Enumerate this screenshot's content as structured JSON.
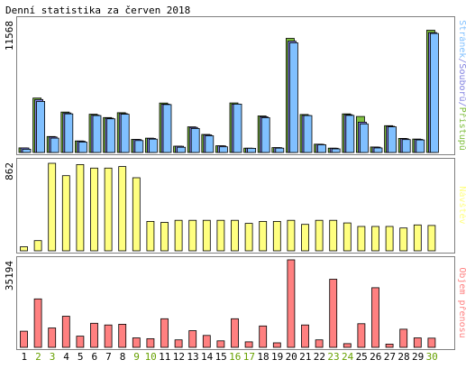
{
  "title": "Denní statistika za červen 2018",
  "colors": {
    "background": "#ffffff",
    "panel_border": "#808080",
    "hits": "#80c040",
    "files": "#8080e0",
    "pages": "#80c0ff",
    "visits": "#ffff80",
    "kbytes": "#ff8080",
    "day_weekday": "#000000",
    "day_weekend": "#66a000"
  },
  "chart_data": [
    {
      "type": "bar",
      "title": "",
      "ymax_label": "11568",
      "ylim": [
        0,
        11568
      ],
      "side_label_parts": [
        {
          "text": "Stránek",
          "color_key": "pages"
        },
        {
          "text": "/",
          "color_key": "files"
        },
        {
          "text": "Souborů",
          "color_key": "files"
        },
        {
          "text": "/",
          "color_key": "files"
        },
        {
          "text": "Přístupů",
          "color_key": "hits"
        }
      ],
      "series": [
        {
          "name": "Přístupů",
          "color_key": "hits",
          "values": [
            420,
            4980,
            1460,
            3700,
            1060,
            3500,
            3200,
            3640,
            1200,
            1310,
            4530,
            580,
            2350,
            1650,
            610,
            4540,
            400,
            3350,
            450,
            10450,
            3480,
            760,
            400,
            3540,
            3300,
            500,
            2450,
            1290,
            1230,
            11200
          ]
        },
        {
          "name": "Souborů",
          "color_key": "files",
          "values": [
            410,
            4850,
            1420,
            3620,
            1030,
            3420,
            3140,
            3560,
            1180,
            1290,
            4430,
            570,
            2300,
            1610,
            600,
            4440,
            390,
            3270,
            440,
            10200,
            3400,
            740,
            390,
            3460,
            2780,
            490,
            2400,
            1260,
            1200,
            10980
          ]
        },
        {
          "name": "Stránek",
          "color_key": "pages",
          "values": [
            300,
            4680,
            1310,
            3540,
            960,
            3380,
            3080,
            3500,
            1090,
            1220,
            4390,
            480,
            2200,
            1530,
            520,
            4430,
            380,
            3190,
            400,
            10050,
            3380,
            700,
            330,
            3400,
            2620,
            410,
            2350,
            1180,
            1150,
            10900
          ]
        }
      ]
    },
    {
      "type": "bar",
      "title": "",
      "ymax_label": "862",
      "ylim": [
        0,
        862
      ],
      "side_label_parts": [
        {
          "text": "Návštěv",
          "color_key": "visits"
        }
      ],
      "series": [
        {
          "name": "Návštěv",
          "color_key": "visits",
          "values": [
            40,
            100,
            862,
            740,
            850,
            815,
            815,
            830,
            720,
            290,
            280,
            300,
            300,
            300,
            300,
            300,
            270,
            290,
            290,
            300,
            260,
            300,
            300,
            275,
            240,
            240,
            240,
            225,
            255,
            250
          ]
        }
      ]
    },
    {
      "type": "bar",
      "title": "",
      "ymax_label": "35194",
      "ylim": [
        0,
        35194
      ],
      "side_label_parts": [
        {
          "text": "Objem přenosu",
          "color_key": "kbytes"
        }
      ],
      "series": [
        {
          "name": "Objem přenosu",
          "color_key": "kbytes",
          "values": [
            6500,
            19500,
            7800,
            12500,
            4500,
            9700,
            9000,
            9300,
            3800,
            3500,
            11500,
            3000,
            6700,
            4800,
            2600,
            11500,
            2200,
            8600,
            1800,
            35194,
            9000,
            3000,
            27400,
            1500,
            9500,
            24000,
            1300,
            7300,
            3800,
            3700
          ]
        }
      ]
    }
  ],
  "days": {
    "labels": [
      "1",
      "2",
      "3",
      "4",
      "5",
      "6",
      "7",
      "8",
      "9",
      "10",
      "11",
      "12",
      "13",
      "14",
      "15",
      "16",
      "17",
      "18",
      "19",
      "20",
      "21",
      "22",
      "23",
      "24",
      "25",
      "26",
      "27",
      "28",
      "29",
      "30"
    ],
    "weekend": [
      false,
      true,
      true,
      false,
      false,
      false,
      false,
      false,
      true,
      true,
      false,
      false,
      false,
      false,
      false,
      true,
      true,
      false,
      false,
      false,
      false,
      false,
      true,
      true,
      false,
      false,
      false,
      false,
      false,
      true
    ]
  }
}
